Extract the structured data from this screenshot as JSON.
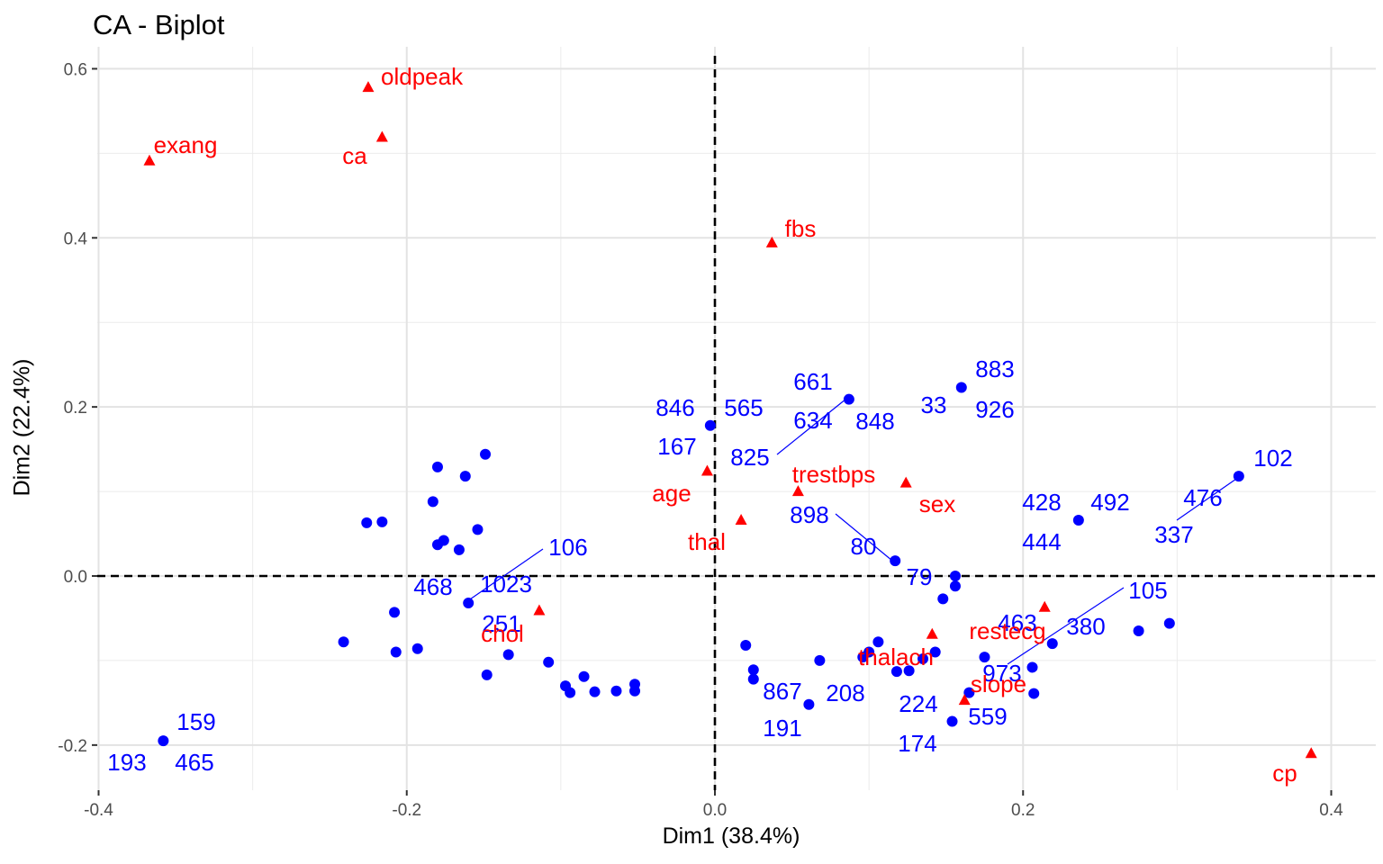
{
  "chart_data": {
    "type": "scatter",
    "title": "CA - Biplot",
    "xlabel": "Dim1 (38.4%)",
    "ylabel": "Dim2 (22.4%)",
    "xlim": [
      -0.4,
      0.4
    ],
    "ylim": [
      -0.2,
      0.6
    ],
    "xticks": [
      -0.4,
      -0.2,
      0.0,
      0.2,
      0.4
    ],
    "xtick_labels": [
      "-0.4",
      "-0.2",
      "0.0",
      "0.2",
      "0.4"
    ],
    "yticks": [
      -0.2,
      0.0,
      0.2,
      0.4,
      0.6
    ],
    "ytick_labels": [
      "-0.2",
      "0.0",
      "0.2",
      "0.4",
      "0.6"
    ],
    "grid": true,
    "colors": {
      "rows": "#0000ff",
      "columns": "#ff0000"
    },
    "row_points": [
      {
        "x": -0.358,
        "y": -0.195
      },
      {
        "x": -0.241,
        "y": -0.078
      },
      {
        "x": -0.226,
        "y": 0.063
      },
      {
        "x": -0.216,
        "y": 0.064
      },
      {
        "x": -0.208,
        "y": -0.043
      },
      {
        "x": -0.207,
        "y": -0.09
      },
      {
        "x": -0.193,
        "y": -0.086
      },
      {
        "x": -0.183,
        "y": 0.088
      },
      {
        "x": -0.18,
        "y": 0.129
      },
      {
        "x": -0.18,
        "y": 0.037
      },
      {
        "x": -0.176,
        "y": 0.042
      },
      {
        "x": -0.166,
        "y": 0.031
      },
      {
        "x": -0.162,
        "y": 0.118
      },
      {
        "x": -0.16,
        "y": -0.032
      },
      {
        "x": -0.154,
        "y": 0.055
      },
      {
        "x": -0.149,
        "y": 0.144
      },
      {
        "x": -0.148,
        "y": -0.117
      },
      {
        "x": -0.134,
        "y": -0.093
      },
      {
        "x": -0.108,
        "y": -0.102
      },
      {
        "x": -0.097,
        "y": -0.13
      },
      {
        "x": -0.094,
        "y": -0.138
      },
      {
        "x": -0.085,
        "y": -0.119
      },
      {
        "x": -0.078,
        "y": -0.137
      },
      {
        "x": -0.064,
        "y": -0.136
      },
      {
        "x": -0.052,
        "y": -0.128
      },
      {
        "x": -0.052,
        "y": -0.136
      },
      {
        "x": -0.003,
        "y": 0.178
      },
      {
        "x": 0.02,
        "y": -0.082
      },
      {
        "x": 0.025,
        "y": -0.111
      },
      {
        "x": 0.025,
        "y": -0.122
      },
      {
        "x": 0.068,
        "y": -0.1
      },
      {
        "x": 0.061,
        "y": -0.152
      },
      {
        "x": 0.087,
        "y": 0.209
      },
      {
        "x": 0.106,
        "y": -0.078
      },
      {
        "x": 0.1,
        "y": -0.09
      },
      {
        "x": 0.096,
        "y": -0.096
      },
      {
        "x": 0.117,
        "y": 0.018
      },
      {
        "x": 0.118,
        "y": -0.113
      },
      {
        "x": 0.126,
        "y": -0.112
      },
      {
        "x": 0.135,
        "y": -0.098
      },
      {
        "x": 0.143,
        "y": -0.09
      },
      {
        "x": 0.148,
        "y": -0.027
      },
      {
        "x": 0.156,
        "y": 0.0
      },
      {
        "x": 0.156,
        "y": -0.012
      },
      {
        "x": 0.154,
        "y": -0.172
      },
      {
        "x": 0.16,
        "y": 0.223
      },
      {
        "x": 0.165,
        "y": -0.138
      },
      {
        "x": 0.175,
        "y": -0.096
      },
      {
        "x": 0.206,
        "y": -0.108
      },
      {
        "x": 0.207,
        "y": -0.139
      },
      {
        "x": 0.219,
        "y": -0.08
      },
      {
        "x": 0.236,
        "y": 0.066
      },
      {
        "x": 0.275,
        "y": -0.065
      },
      {
        "x": 0.295,
        "y": -0.056
      },
      {
        "x": 0.34,
        "y": 0.118
      }
    ],
    "row_labels": [
      {
        "text": "159"
      },
      {
        "text": "193"
      },
      {
        "text": "465"
      },
      {
        "text": "106"
      },
      {
        "text": "468"
      },
      {
        "text": "1023"
      },
      {
        "text": "251"
      },
      {
        "text": "846"
      },
      {
        "text": "565"
      },
      {
        "text": "167"
      },
      {
        "text": "825"
      },
      {
        "text": "661"
      },
      {
        "text": "634"
      },
      {
        "text": "848"
      },
      {
        "text": "883"
      },
      {
        "text": "33"
      },
      {
        "text": "926"
      },
      {
        "text": "898"
      },
      {
        "text": "80"
      },
      {
        "text": "79"
      },
      {
        "text": "867"
      },
      {
        "text": "208"
      },
      {
        "text": "191"
      },
      {
        "text": "224"
      },
      {
        "text": "174"
      },
      {
        "text": "559"
      },
      {
        "text": "463"
      },
      {
        "text": "380"
      },
      {
        "text": "105"
      },
      {
        "text": "973"
      },
      {
        "text": "428"
      },
      {
        "text": "492"
      },
      {
        "text": "444"
      },
      {
        "text": "476"
      },
      {
        "text": "337"
      },
      {
        "text": "102"
      }
    ],
    "column_points": [
      {
        "name": "oldpeak",
        "x": -0.225,
        "y": 0.578
      },
      {
        "name": "ca",
        "x": -0.216,
        "y": 0.519
      },
      {
        "name": "exang",
        "x": -0.367,
        "y": 0.491
      },
      {
        "name": "fbs",
        "x": 0.037,
        "y": 0.394
      },
      {
        "name": "age",
        "x": -0.005,
        "y": 0.124
      },
      {
        "name": "trestbps",
        "x": 0.054,
        "y": 0.1
      },
      {
        "name": "sex",
        "x": 0.124,
        "y": 0.11
      },
      {
        "name": "thal",
        "x": 0.017,
        "y": 0.066
      },
      {
        "name": "chol",
        "x": -0.114,
        "y": -0.041
      },
      {
        "name": "restecg",
        "x": 0.214,
        "y": -0.037
      },
      {
        "name": "thalach",
        "x": 0.141,
        "y": -0.069
      },
      {
        "name": "slope",
        "x": 0.162,
        "y": -0.147
      },
      {
        "name": "cp",
        "x": 0.387,
        "y": -0.21
      }
    ]
  }
}
